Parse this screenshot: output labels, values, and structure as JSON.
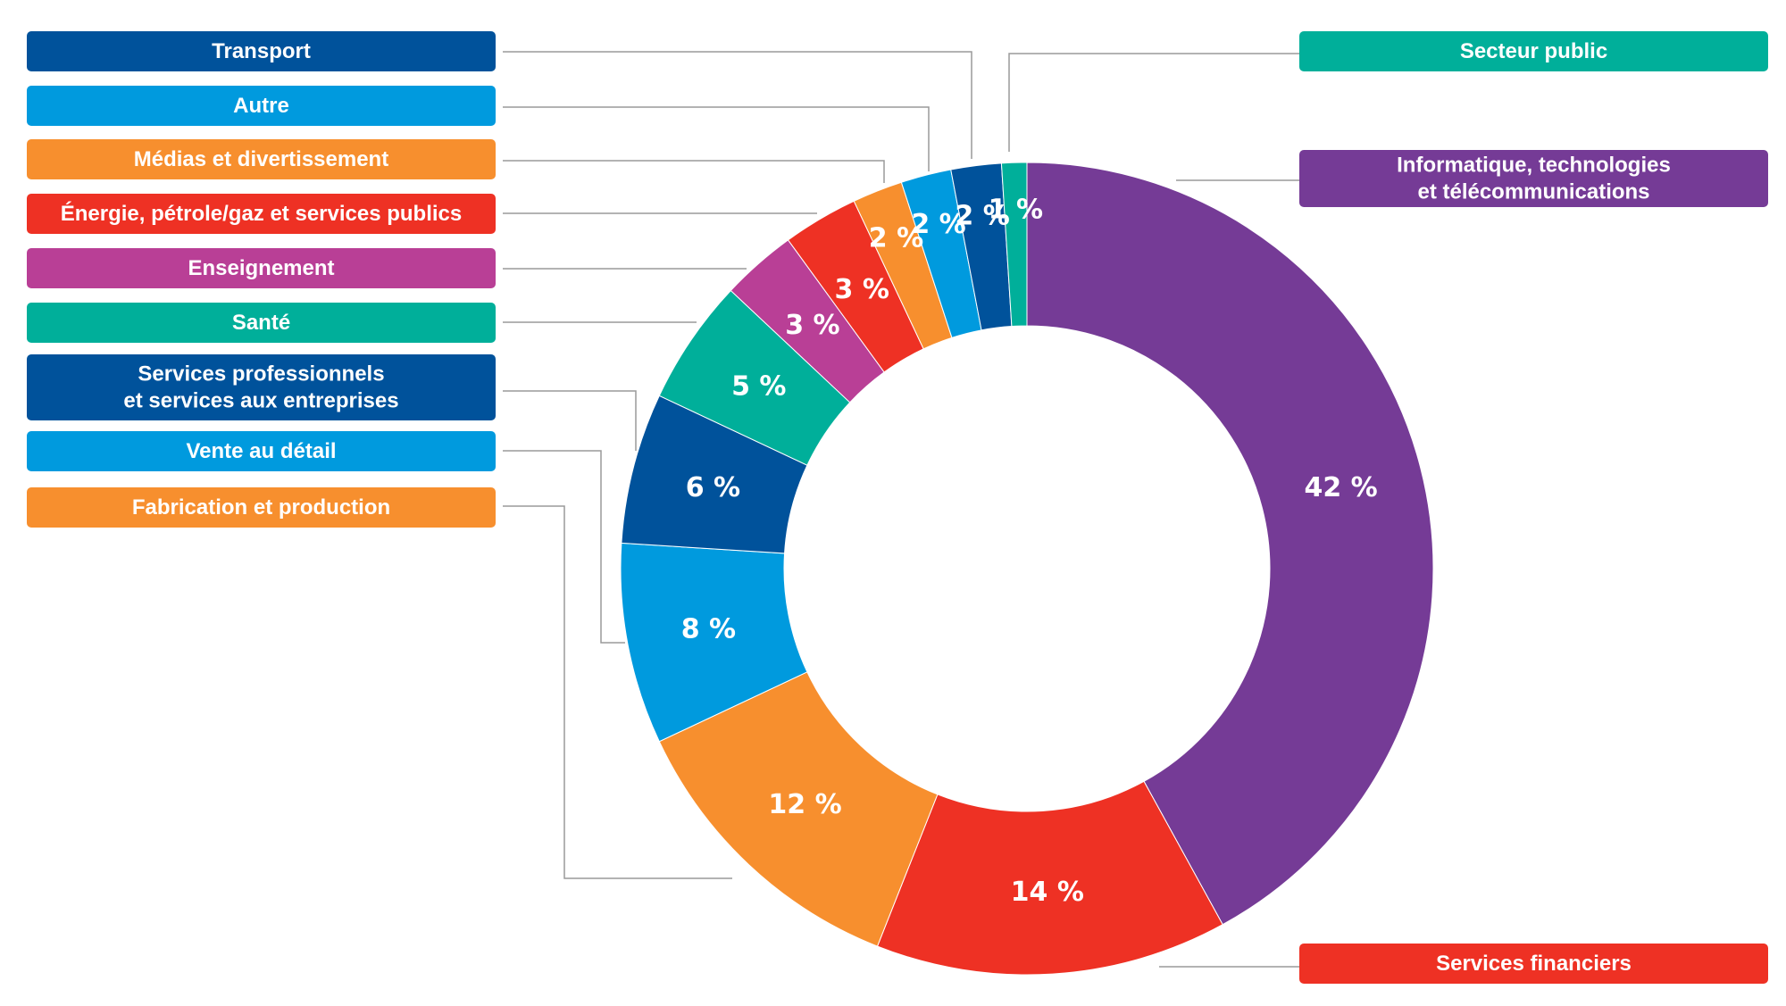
{
  "chart_data": {
    "type": "pie",
    "variant": "donut",
    "title": "",
    "legend_placement": "sides",
    "slices": [
      {
        "label": "Informatique, technologies et télécommunications",
        "lines": [
          "Informatique, technologies",
          "et télécommunications"
        ],
        "value": 42,
        "value_label": "42 %",
        "color": "#753B96"
      },
      {
        "label": "Services financiers",
        "lines": [
          "Services financiers"
        ],
        "value": 14,
        "value_label": "14 %",
        "color": "#EE3124"
      },
      {
        "label": "Fabrication et production",
        "lines": [
          "Fabrication et production"
        ],
        "value": 12,
        "value_label": "12 %",
        "color": "#F78F2E"
      },
      {
        "label": "Vente au détail",
        "lines": [
          "Vente au détail"
        ],
        "value": 8,
        "value_label": "8 %",
        "color": "#009ADE"
      },
      {
        "label": "Services professionnels et services aux entreprises",
        "lines": [
          "Services professionnels",
          "et services aux entreprises"
        ],
        "value": 6,
        "value_label": "6 %",
        "color": "#00529B"
      },
      {
        "label": "Santé",
        "lines": [
          "Santé"
        ],
        "value": 5,
        "value_label": "5 %",
        "color": "#00AF9A"
      },
      {
        "label": "Enseignement",
        "lines": [
          "Enseignement"
        ],
        "value": 3,
        "value_label": "3 %",
        "color": "#B93F96"
      },
      {
        "label": "Énergie, pétrole/gaz et services publics",
        "lines": [
          "Énergie, pétrole/gaz et services publics"
        ],
        "value": 3,
        "value_label": "3 %",
        "color": "#EE3124"
      },
      {
        "label": "Médias et divertissement",
        "lines": [
          "Médias et divertissement"
        ],
        "value": 2,
        "value_label": "2 %",
        "color": "#F78F2E"
      },
      {
        "label": "Autre",
        "lines": [
          "Autre"
        ],
        "value": 2,
        "value_label": "2 %",
        "color": "#009ADE"
      },
      {
        "label": "Transport",
        "lines": [
          "Transport"
        ],
        "value": 2,
        "value_label": "2 %",
        "color": "#00529B"
      },
      {
        "label": "Secteur public",
        "lines": [
          "Secteur public"
        ],
        "value": 1,
        "value_label": "1 %",
        "color": "#00AF9A"
      }
    ]
  }
}
